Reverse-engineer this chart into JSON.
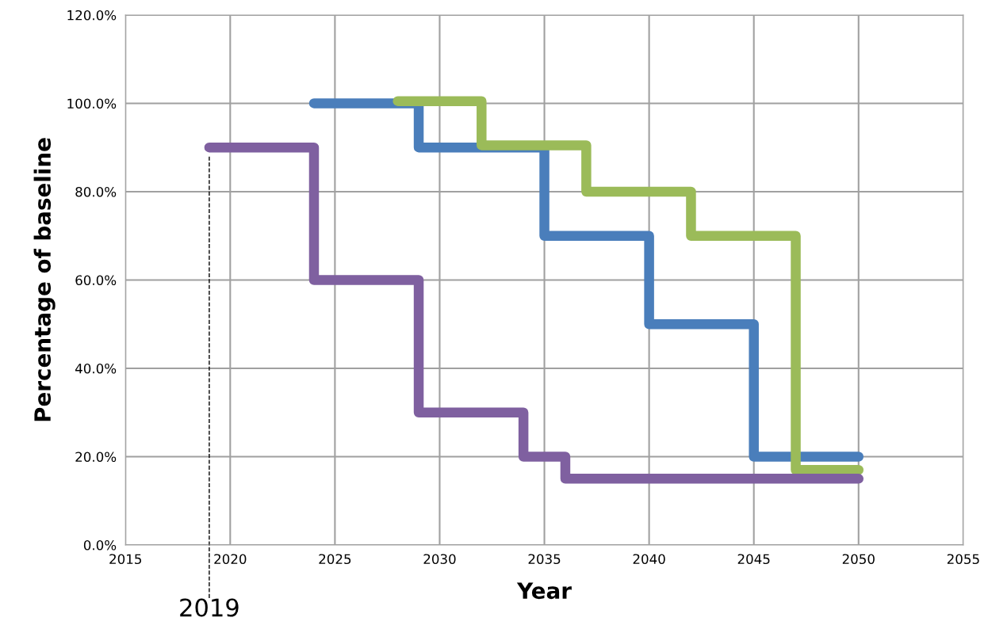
{
  "chart_data": {
    "type": "step",
    "xlabel": "Year",
    "ylabel": "Percentage of baseline",
    "xlim": [
      2015,
      2055
    ],
    "xticks": [
      2015,
      2020,
      2025,
      2030,
      2035,
      2040,
      2045,
      2050,
      2055
    ],
    "ylim": [
      0,
      120
    ],
    "yticks": [
      {
        "value": 0,
        "label": "0.0%"
      },
      {
        "value": 20,
        "label": "20.0%"
      },
      {
        "value": 40,
        "label": "40.0%"
      },
      {
        "value": 60,
        "label": "60.0%"
      },
      {
        "value": 80,
        "label": "80.0%"
      },
      {
        "value": 100,
        "label": "100.0%"
      },
      {
        "value": 120,
        "label": "120.0%"
      }
    ],
    "grid": true,
    "line_style": "solid",
    "series": [
      {
        "color": "#4a7ebb",
        "x": [
          2024,
          2029,
          2035,
          2040,
          2045,
          2050
        ],
        "values": [
          100,
          90,
          70,
          50,
          20,
          20
        ]
      },
      {
        "color": "#9bbb59",
        "x": [
          2028,
          2032,
          2037,
          2042,
          2047,
          2050
        ],
        "values": [
          100.5,
          90.5,
          80,
          70,
          17,
          17
        ]
      },
      {
        "color": "#7f60a0",
        "x": [
          2019,
          2024,
          2029,
          2034,
          2036,
          2050
        ],
        "values": [
          90,
          60,
          30,
          20,
          15,
          15
        ]
      }
    ],
    "ref_lines": [
      {
        "axis": "x",
        "value": 2019,
        "label": "2019",
        "color": "#000000",
        "line_style": "dashed"
      }
    ]
  }
}
